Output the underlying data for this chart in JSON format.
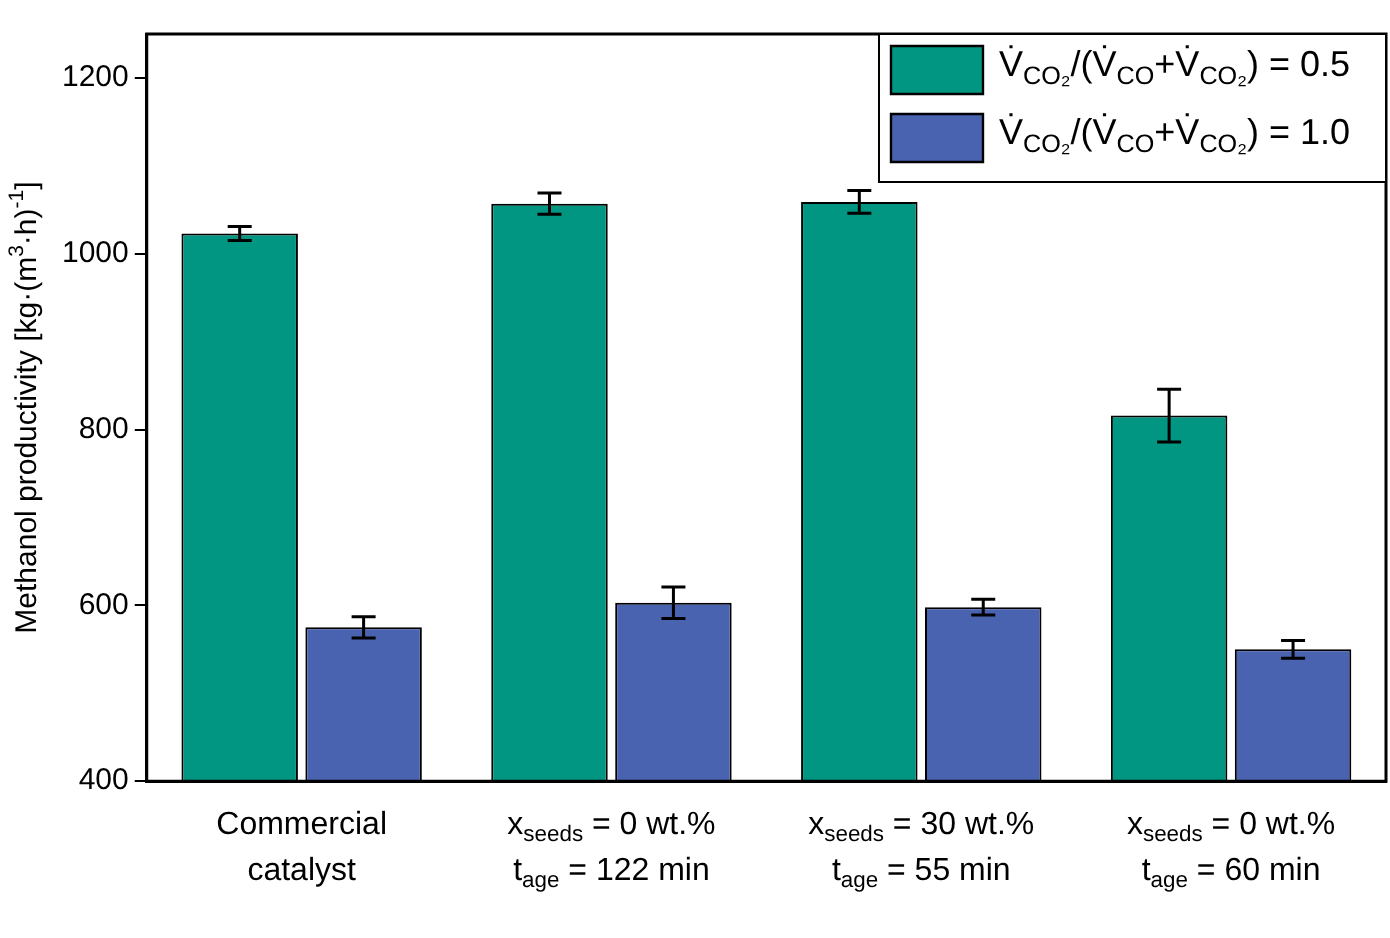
{
  "chart_data": {
    "type": "bar",
    "ylabel": "Methanol productivity [kg·(m$^{3}$·h)$^{-1}$]",
    "categories": [
      "Commercial\ncatalyst",
      "x$_{seeds}$ = 0 wt.%\nt$_{age}$ = 122 min",
      "x$_{seeds}$ = 30 wt.%\nt$_{age}$ = 55 min",
      "x$_{seeds}$ = 0 wt.%\nt$_{age}$ = 60 min"
    ],
    "series": [
      {
        "name": "V̇$_{CO₂}$/(V̇$_{CO}$+V̇$_{CO₂}$) = 0.5",
        "color": "#009682",
        "values": [
          1023,
          1057,
          1059,
          816
        ],
        "errors": [
          8,
          12,
          13,
          30
        ]
      },
      {
        "name": "V̇$_{CO₂}$/(V̇$_{CO}$+V̇$_{CO₂}$) = 1.0",
        "color": "#4a63b0",
        "values": [
          575,
          603,
          598,
          550
        ],
        "errors": [
          12,
          18,
          9,
          10
        ]
      }
    ],
    "ylim": [
      400,
      1250
    ],
    "yticks": [
      400,
      600,
      800,
      1000,
      1200
    ],
    "grid": false,
    "legend": "top right"
  }
}
